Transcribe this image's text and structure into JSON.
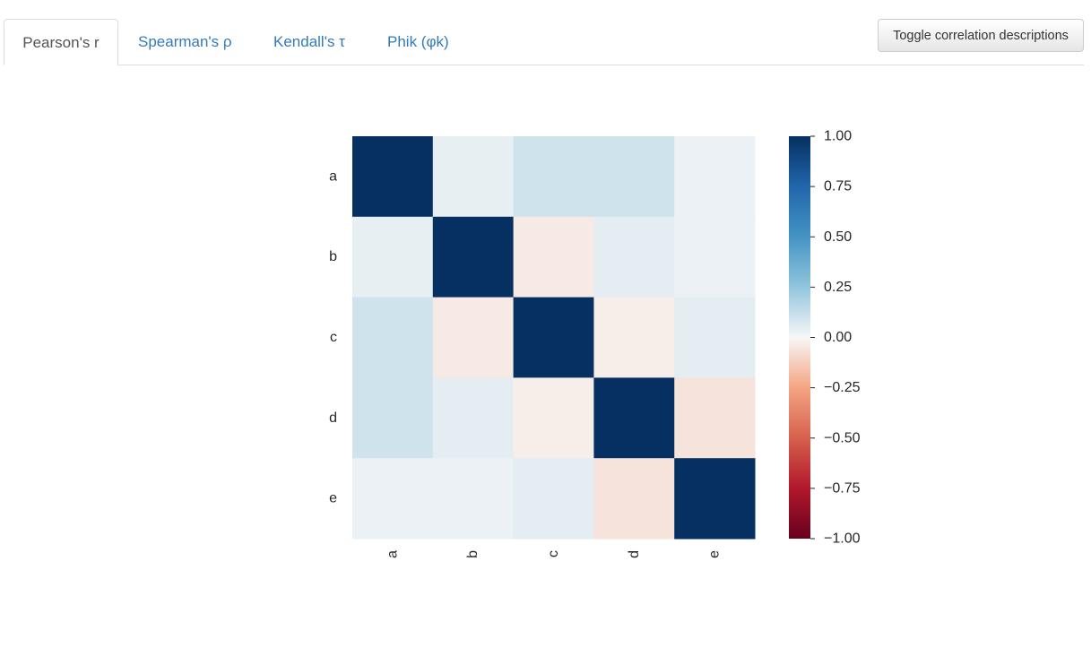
{
  "tabs": [
    {
      "label": "Pearson's r",
      "active": true
    },
    {
      "label": "Spearman's ρ",
      "active": false
    },
    {
      "label": "Kendall's τ",
      "active": false
    },
    {
      "label": "Phik (φk)",
      "active": false
    }
  ],
  "toggle_button": {
    "label": "Toggle correlation descriptions"
  },
  "chart_data": {
    "type": "heatmap",
    "title": "",
    "xlabel": "",
    "ylabel": "",
    "x_categories": [
      "a",
      "b",
      "c",
      "d",
      "e"
    ],
    "y_categories": [
      "a",
      "b",
      "c",
      "d",
      "e"
    ],
    "values": [
      [
        1.0,
        0.04,
        0.1,
        0.1,
        0.03
      ],
      [
        0.04,
        1.0,
        -0.04,
        0.05,
        0.03
      ],
      [
        0.1,
        -0.04,
        1.0,
        -0.03,
        0.05
      ],
      [
        0.1,
        0.05,
        -0.03,
        1.0,
        -0.06
      ],
      [
        0.03,
        0.03,
        0.05,
        -0.06,
        1.0
      ]
    ],
    "colormap": "RdBu",
    "vmin": -1.0,
    "vmax": 1.0,
    "colorbar_ticks": [
      "1.00",
      "0.75",
      "0.50",
      "0.25",
      "0.00",
      "−0.25",
      "−0.50",
      "−0.75",
      "−1.00"
    ],
    "colorbar_tick_values": [
      1.0,
      0.75,
      0.5,
      0.25,
      0.0,
      -0.25,
      -0.5,
      -0.75,
      -1.0
    ]
  }
}
